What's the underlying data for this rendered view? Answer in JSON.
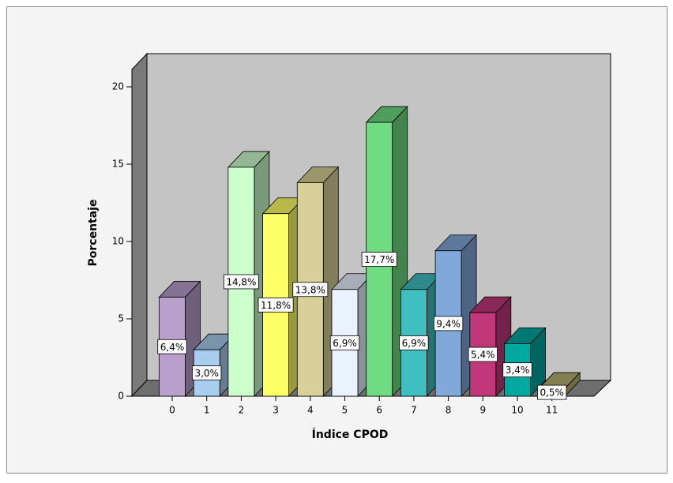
{
  "chart_data": {
    "type": "bar3d",
    "x_label": "Índice CPOD",
    "y_label": "Porcentaje",
    "categories": [
      "0",
      "1",
      "2",
      "3",
      "4",
      "5",
      "6",
      "7",
      "8",
      "9",
      "10",
      "11"
    ],
    "values": [
      6.4,
      3.0,
      14.8,
      11.8,
      13.8,
      6.9,
      17.7,
      6.9,
      9.4,
      5.4,
      3.4,
      0.5
    ],
    "value_labels": [
      "6,4%",
      "3,0%",
      "14,8%",
      "11,8%",
      "13,8%",
      "6,9%",
      "17,7%",
      "6,9%",
      "9,4%",
      "5,4%",
      "3,4%",
      "0,5%"
    ],
    "colors": [
      "#b89fcc",
      "#a9cdef",
      "#ccffcc",
      "#ffff66",
      "#d8d098",
      "#eaf2ff",
      "#6fdc82",
      "#3fbfbf",
      "#80a8d8",
      "#c0387a",
      "#00a8a0",
      "#b8b070"
    ],
    "ylim": [
      0,
      20
    ],
    "yticks": [
      0,
      5,
      10,
      15,
      20
    ],
    "grid": false
  }
}
